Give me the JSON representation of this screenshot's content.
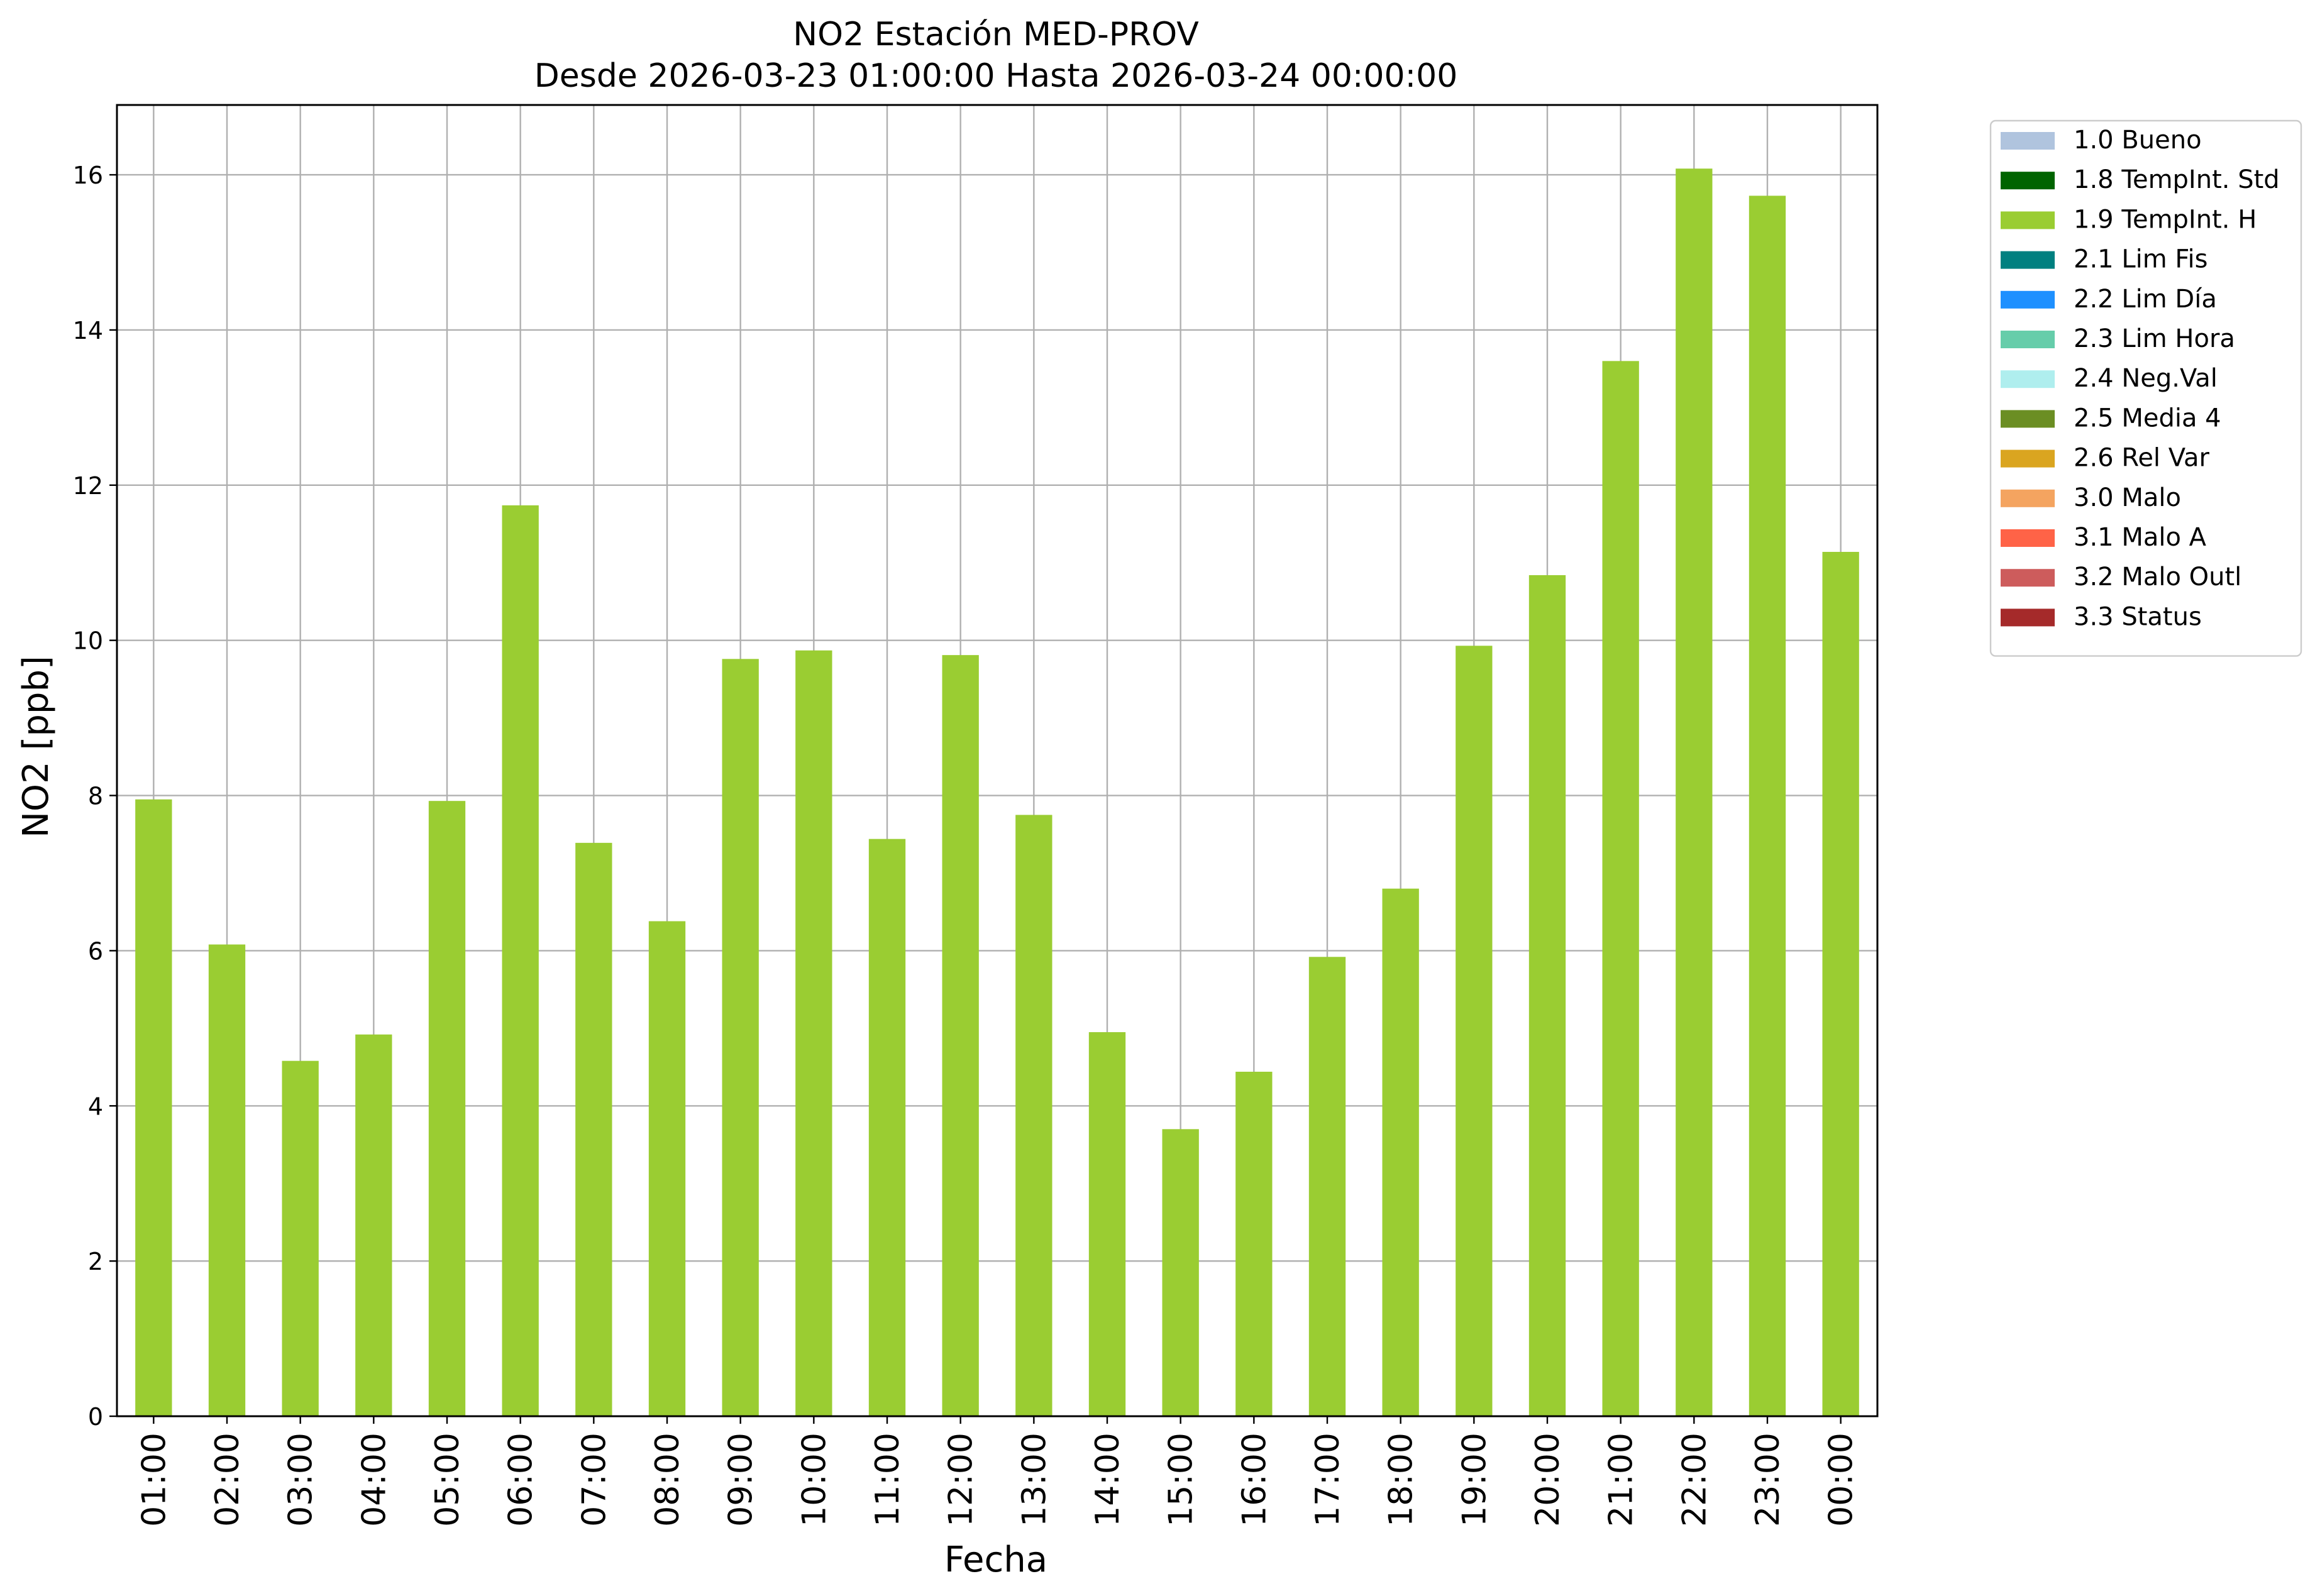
{
  "chart_data": {
    "type": "bar",
    "title": "NO2 Estación MED-PROV",
    "subtitle": "Desde 2026-03-23 01:00:00 Hasta 2026-03-24 00:00:00",
    "xlabel": "Fecha",
    "ylabel": "NO2 [ppb]",
    "ylim": [
      0,
      16.9
    ],
    "yticks": [
      "0",
      "2",
      "4",
      "6",
      "8",
      "10",
      "12",
      "14",
      "16"
    ],
    "grid": true,
    "legend_position": "outside-top-right",
    "categories": [
      "01:00",
      "02:00",
      "03:00",
      "04:00",
      "05:00",
      "06:00",
      "07:00",
      "08:00",
      "09:00",
      "10:00",
      "11:00",
      "12:00",
      "13:00",
      "14:00",
      "15:00",
      "16:00",
      "17:00",
      "18:00",
      "19:00",
      "20:00",
      "21:00",
      "22:00",
      "23:00",
      "00:00"
    ],
    "series": [
      {
        "name": "1.9 TempInt. H",
        "color": "#9acd32",
        "values": [
          7.95,
          6.08,
          4.58,
          4.92,
          7.93,
          11.74,
          7.39,
          6.38,
          9.76,
          9.87,
          7.44,
          9.81,
          7.75,
          4.95,
          3.7,
          4.44,
          5.92,
          6.8,
          9.93,
          10.84,
          13.6,
          16.08,
          15.73,
          11.14
        ]
      }
    ],
    "legend": [
      {
        "label": "1.0 Bueno",
        "color": "#b0c4de"
      },
      {
        "label": "1.8 TempInt. Std",
        "color": "#006400"
      },
      {
        "label": "1.9 TempInt. H",
        "color": "#9acd32"
      },
      {
        "label": "2.1 Lim Fis",
        "color": "#008080"
      },
      {
        "label": "2.2 Lim Día",
        "color": "#1e90ff"
      },
      {
        "label": "2.3 Lim Hora",
        "color": "#66cdaa"
      },
      {
        "label": "2.4 Neg.Val",
        "color": "#afeeee"
      },
      {
        "label": "2.5 Media 4",
        "color": "#6b8e23"
      },
      {
        "label": "2.6 Rel Var",
        "color": "#daa520"
      },
      {
        "label": "3.0 Malo",
        "color": "#f4a460"
      },
      {
        "label": "3.1 Malo A",
        "color": "#ff6347"
      },
      {
        "label": "3.2 Malo Outl",
        "color": "#cd5c5c"
      },
      {
        "label": "3.3 Status",
        "color": "#a52a2a"
      }
    ]
  }
}
